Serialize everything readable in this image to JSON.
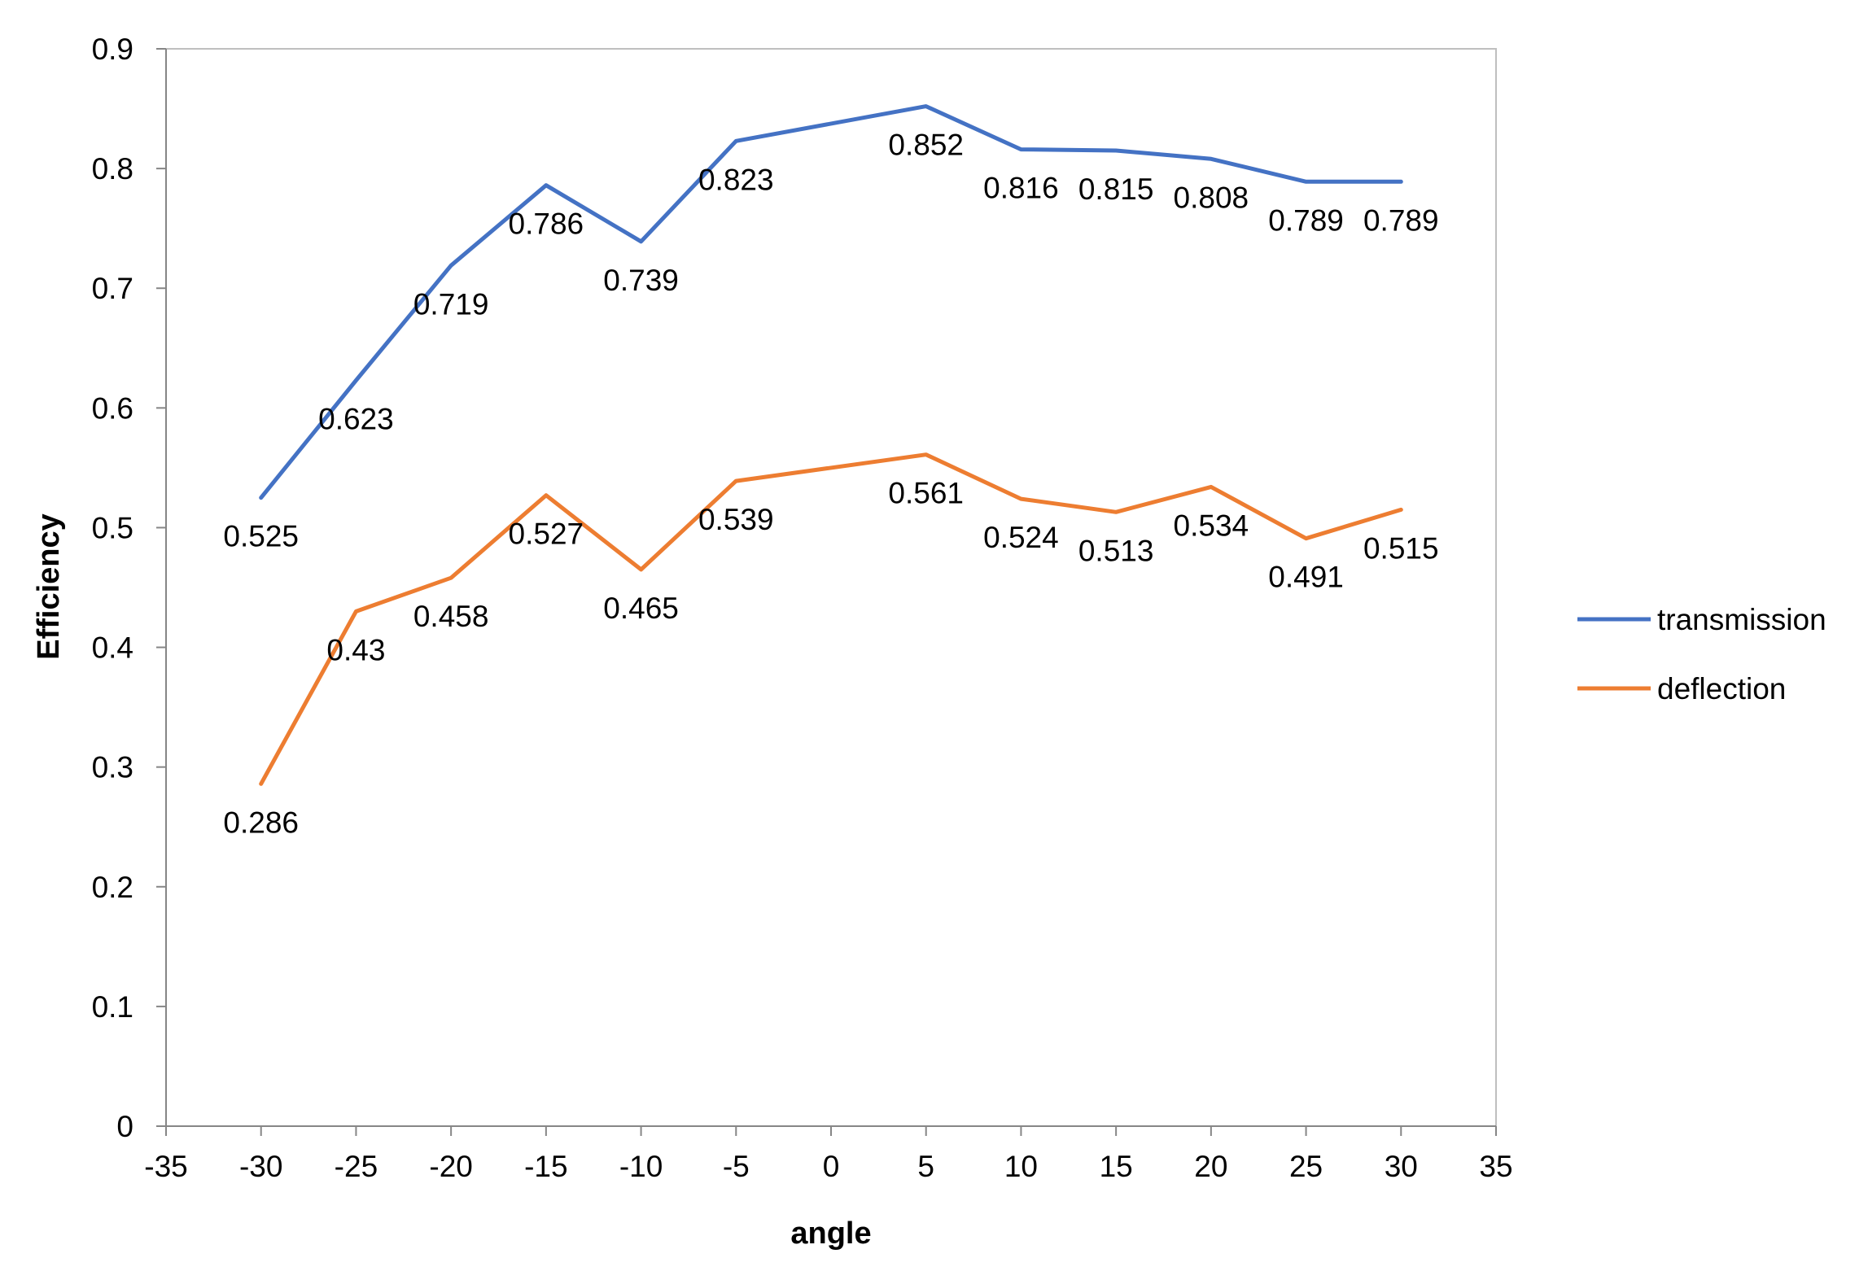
{
  "chart_data": {
    "type": "line",
    "xlabel": "angle",
    "ylabel": "Efficiency",
    "xlim": [
      -35,
      35
    ],
    "ylim": [
      0,
      0.9
    ],
    "xticks": [
      -35,
      -30,
      -25,
      -20,
      -15,
      -10,
      -5,
      0,
      5,
      10,
      15,
      20,
      25,
      30,
      35
    ],
    "yticks": [
      0,
      0.1,
      0.2,
      0.3,
      0.4,
      0.5,
      0.6,
      0.7,
      0.8,
      0.9
    ],
    "grid": false,
    "legend": "right",
    "x": [
      -30,
      -25,
      -20,
      -15,
      -10,
      -5,
      5,
      10,
      15,
      20,
      25,
      30
    ],
    "series": [
      {
        "name": "transmission",
        "color": "#4472C4",
        "values": [
          0.525,
          0.623,
          0.719,
          0.786,
          0.739,
          0.823,
          0.852,
          0.816,
          0.815,
          0.808,
          0.789,
          0.789
        ],
        "labels": [
          "0.525",
          "0.623",
          "0.719",
          "0.786",
          "0.739",
          "0.823",
          "0.852",
          "0.816",
          "0.815",
          "0.808",
          "0.789",
          "0.789"
        ]
      },
      {
        "name": "deflection",
        "color": "#ED7D31",
        "values": [
          0.286,
          0.43,
          0.458,
          0.527,
          0.465,
          0.539,
          0.561,
          0.524,
          0.513,
          0.534,
          0.491,
          0.515
        ],
        "labels": [
          "0.286",
          "0.43",
          "0.458",
          "0.527",
          "0.465",
          "0.539",
          "0.561",
          "0.524",
          "0.513",
          "0.534",
          "0.491",
          "0.515"
        ]
      }
    ]
  }
}
